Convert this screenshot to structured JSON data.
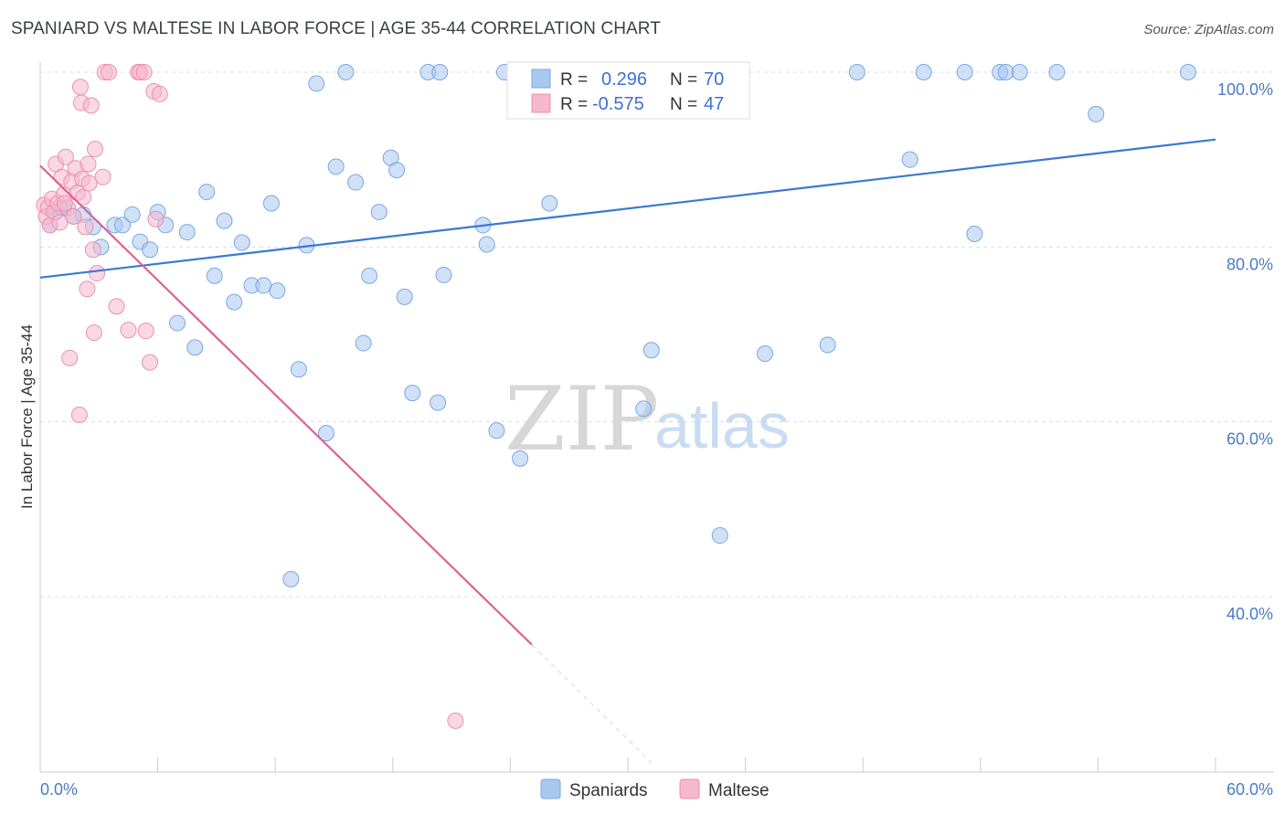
{
  "header": {
    "title": "SPANIARD VS MALTESE IN LABOR FORCE | AGE 35-44 CORRELATION CHART",
    "source": "Source: ZipAtlas.com"
  },
  "watermark": {
    "zip": "ZIP",
    "atlas": "atlas"
  },
  "colors": {
    "blue": "#3a78d4",
    "blue_fill": "#a9c8f0",
    "pink": "#e06090",
    "pink_fill": "#f5b8cc",
    "grid": "#dddddd",
    "tick_text": "#4a7cc4"
  },
  "stats_box": {
    "rows": [
      {
        "r_label": "R =",
        "r_value": "0.296",
        "n_label": "N =",
        "n_value": "70"
      },
      {
        "r_label": "R =",
        "r_value": "-0.575",
        "n_label": "N =",
        "n_value": "47"
      }
    ]
  },
  "chart_data": {
    "type": "scatter",
    "title": "SPANIARD VS MALTESE IN LABOR FORCE | AGE 35-44 CORRELATION CHART",
    "xlabel": "",
    "ylabel": "In Labor Force | Age 35-44",
    "xlim": [
      0,
      60
    ],
    "ylim": [
      18,
      102
    ],
    "x_tick_labels": [
      {
        "value": 0,
        "label": "0.0%"
      },
      {
        "value": 60,
        "label": "60.0%"
      }
    ],
    "x_minor_ticks": [
      6,
      12,
      18,
      24,
      30,
      36,
      42,
      48,
      54
    ],
    "y_ticks": [
      {
        "value": 100,
        "label": "100.0%"
      },
      {
        "value": 80,
        "label": "80.0%"
      },
      {
        "value": 60,
        "label": "60.0%"
      },
      {
        "value": 40,
        "label": "40.0%"
      }
    ],
    "grid": true,
    "legend": [
      "Spaniards",
      "Maltese"
    ],
    "legend_position": "bottom-center",
    "series": [
      {
        "name": "Spaniards",
        "trend": {
          "x": [
            0,
            60
          ],
          "y": [
            76.5,
            92.3
          ]
        },
        "points": [
          [
            0.5,
            82.5
          ],
          [
            0.8,
            84.0
          ],
          [
            1.2,
            84.5
          ],
          [
            1.7,
            83.5
          ],
          [
            2.2,
            83.7
          ],
          [
            2.7,
            82.3
          ],
          [
            3.1,
            80.0
          ],
          [
            3.8,
            82.5
          ],
          [
            4.2,
            82.5
          ],
          [
            4.7,
            83.7
          ],
          [
            5.1,
            80.6
          ],
          [
            5.6,
            79.7
          ],
          [
            6.0,
            84.0
          ],
          [
            6.4,
            82.5
          ],
          [
            7.0,
            71.3
          ],
          [
            7.5,
            81.7
          ],
          [
            7.9,
            68.5
          ],
          [
            8.5,
            86.3
          ],
          [
            8.9,
            76.7
          ],
          [
            9.4,
            83.0
          ],
          [
            9.9,
            73.7
          ],
          [
            10.3,
            80.5
          ],
          [
            10.8,
            75.6
          ],
          [
            11.4,
            75.6
          ],
          [
            11.8,
            85.0
          ],
          [
            12.1,
            75.0
          ],
          [
            12.8,
            42.0
          ],
          [
            13.2,
            66.0
          ],
          [
            13.6,
            80.2
          ],
          [
            14.1,
            98.7
          ],
          [
            14.6,
            58.7
          ],
          [
            15.1,
            89.2
          ],
          [
            15.6,
            100.0
          ],
          [
            16.1,
            87.4
          ],
          [
            16.5,
            69.0
          ],
          [
            16.8,
            76.7
          ],
          [
            17.3,
            84.0
          ],
          [
            17.9,
            90.2
          ],
          [
            18.2,
            88.8
          ],
          [
            18.6,
            74.3
          ],
          [
            19.0,
            63.3
          ],
          [
            19.8,
            100.0
          ],
          [
            20.3,
            62.2
          ],
          [
            20.4,
            100.0
          ],
          [
            20.6,
            76.8
          ],
          [
            22.6,
            82.5
          ],
          [
            22.8,
            80.3
          ],
          [
            23.3,
            59.0
          ],
          [
            23.7,
            100.0
          ],
          [
            24.5,
            55.8
          ],
          [
            24.7,
            98.0
          ],
          [
            26.0,
            85.0
          ],
          [
            26.8,
            100.0
          ],
          [
            30.8,
            61.5
          ],
          [
            31.2,
            68.2
          ],
          [
            34.7,
            47.0
          ],
          [
            37.0,
            67.8
          ],
          [
            40.2,
            68.8
          ],
          [
            41.7,
            100.0
          ],
          [
            44.4,
            90.0
          ],
          [
            45.1,
            100.0
          ],
          [
            47.2,
            100.0
          ],
          [
            47.7,
            81.5
          ],
          [
            49.0,
            100.0
          ],
          [
            49.3,
            100.0
          ],
          [
            50.0,
            100.0
          ],
          [
            51.9,
            100.0
          ],
          [
            53.9,
            95.2
          ],
          [
            58.6,
            100.0
          ],
          [
            1.0,
            84.6
          ]
        ]
      },
      {
        "name": "Maltese",
        "trend": {
          "x": [
            0,
            25.1
          ],
          "y": [
            89.3,
            34.5
          ],
          "dashed_x": [
            25.1,
            31.2
          ],
          "dashed_y": [
            34.5,
            21.0
          ]
        },
        "points": [
          [
            0.2,
            84.8
          ],
          [
            0.3,
            83.5
          ],
          [
            0.4,
            84.5
          ],
          [
            0.5,
            82.5
          ],
          [
            0.6,
            85.5
          ],
          [
            0.7,
            84.0
          ],
          [
            0.8,
            89.5
          ],
          [
            0.9,
            85.0
          ],
          [
            1.0,
            82.8
          ],
          [
            1.1,
            88.0
          ],
          [
            1.2,
            86.0
          ],
          [
            1.3,
            90.3
          ],
          [
            1.4,
            84.5
          ],
          [
            1.5,
            67.3
          ],
          [
            1.6,
            87.5
          ],
          [
            1.7,
            83.5
          ],
          [
            1.8,
            89.0
          ],
          [
            1.9,
            86.2
          ],
          [
            2.0,
            60.8
          ],
          [
            2.05,
            98.3
          ],
          [
            2.1,
            96.5
          ],
          [
            2.15,
            87.8
          ],
          [
            2.2,
            85.7
          ],
          [
            2.3,
            82.3
          ],
          [
            2.4,
            75.2
          ],
          [
            2.45,
            89.5
          ],
          [
            2.5,
            87.3
          ],
          [
            2.6,
            96.2
          ],
          [
            2.7,
            79.7
          ],
          [
            2.75,
            70.2
          ],
          [
            2.8,
            91.2
          ],
          [
            2.9,
            77.0
          ],
          [
            3.3,
            100.0
          ],
          [
            3.5,
            100.0
          ],
          [
            3.9,
            73.2
          ],
          [
            4.5,
            70.5
          ],
          [
            5.0,
            100.0
          ],
          [
            5.1,
            100.0
          ],
          [
            5.3,
            100.0
          ],
          [
            5.4,
            70.4
          ],
          [
            5.6,
            66.8
          ],
          [
            5.8,
            97.8
          ],
          [
            5.9,
            83.2
          ],
          [
            6.1,
            97.5
          ],
          [
            3.2,
            88.0
          ],
          [
            1.25,
            85.0
          ],
          [
            21.2,
            25.8
          ]
        ]
      }
    ]
  }
}
